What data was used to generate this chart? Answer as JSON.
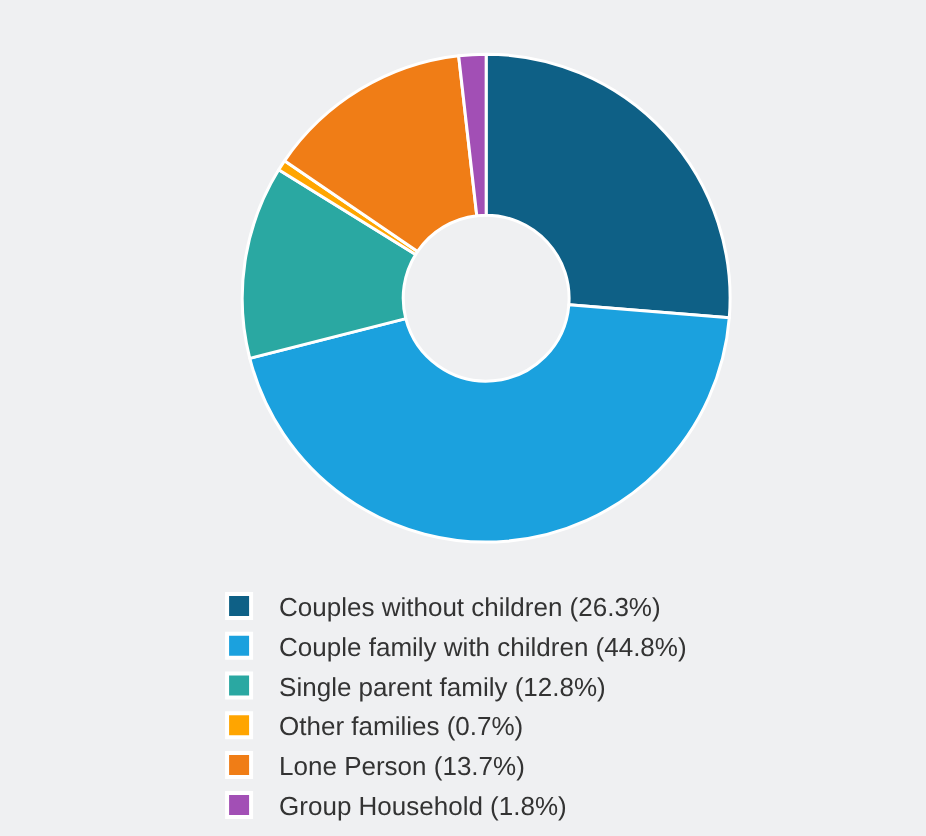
{
  "chart_data": {
    "type": "donut",
    "categories": [
      "Couples without children (26.3%)",
      "Couple family with children (44.8%)",
      "Single parent family (12.8%)",
      "Other families (0.7%)",
      "Lone Person (13.7%)",
      "Group Household (1.8%)"
    ],
    "values": [
      26.3,
      44.8,
      12.8,
      0.7,
      13.7,
      1.8
    ],
    "colors": [
      "#0e6086",
      "#1ba1de",
      "#2aa8a2",
      "#ffa500",
      "#f07d16",
      "#a24fb5"
    ],
    "legend": "bottom"
  }
}
